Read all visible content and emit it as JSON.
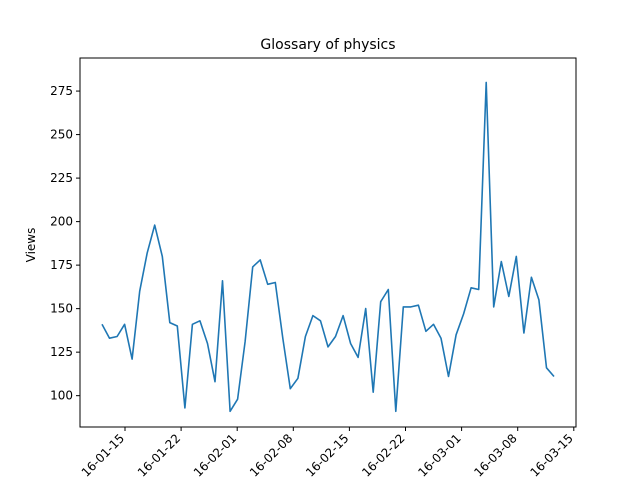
{
  "chart_data": {
    "type": "line",
    "title": "Glossary of physics",
    "xlabel": "",
    "ylabel": "Views",
    "x_tick_labels": [
      "16-01-15",
      "16-01-22",
      "16-02-01",
      "16-02-08",
      "16-02-15",
      "16-02-22",
      "16-03-01",
      "16-03-08",
      "16-03-15"
    ],
    "y_ticks": [
      100,
      125,
      150,
      175,
      200,
      225,
      250,
      275
    ],
    "ylim": [
      82,
      294
    ],
    "grid": false,
    "legend": "none",
    "series": [
      {
        "color": "#1f77b4",
        "values": [
          141,
          133,
          134,
          141,
          121,
          160,
          182,
          198,
          180,
          142,
          140,
          93,
          141,
          143,
          130,
          108,
          166,
          91,
          98,
          131,
          174,
          178,
          164,
          165,
          133,
          104,
          110,
          134,
          146,
          143,
          128,
          134,
          146,
          130,
          122,
          150,
          102,
          154,
          161,
          91,
          151,
          151,
          152,
          137,
          141,
          133,
          111,
          135,
          147,
          162,
          161,
          280,
          151,
          177,
          157,
          180,
          136,
          168,
          155,
          116,
          111
        ]
      }
    ]
  }
}
